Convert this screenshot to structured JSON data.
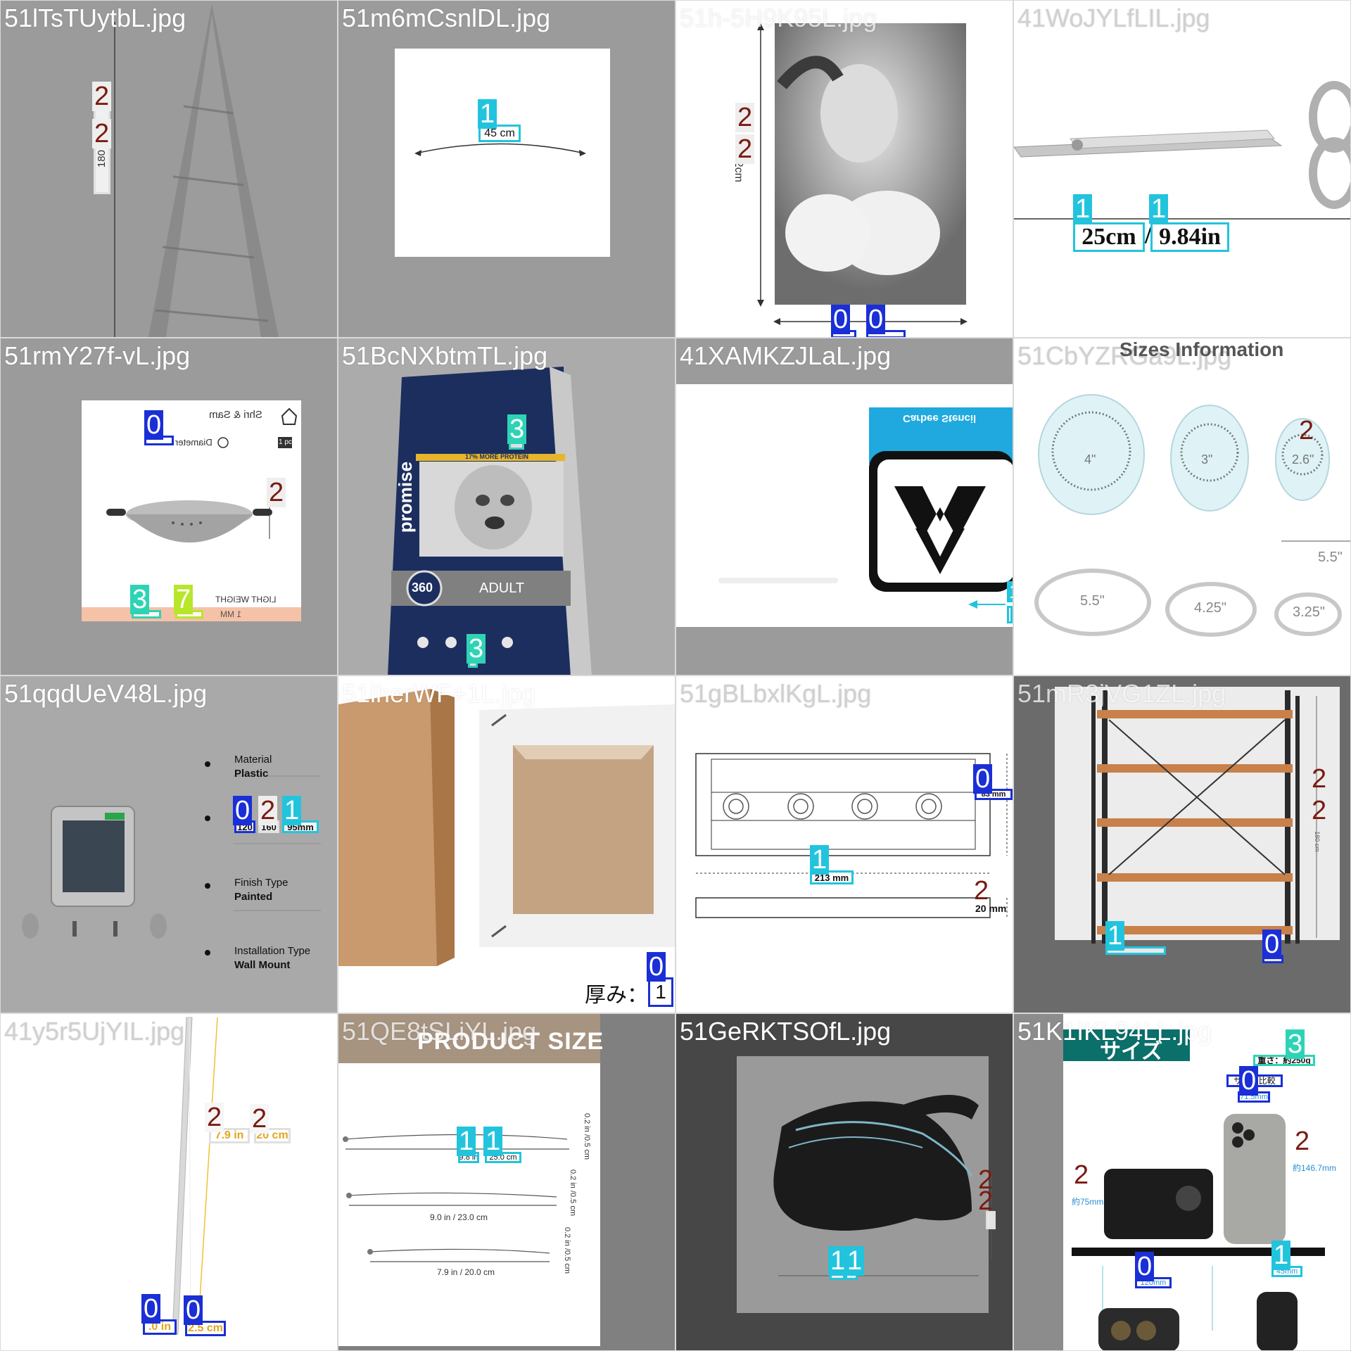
{
  "colors": {
    "class0": "#1a2fd6",
    "class1": "#22c4dd",
    "class2": "#eeeeee",
    "class3": "#2ed3b5",
    "class7": "#b8e62a"
  },
  "tiles": [
    {
      "filename": "51lTsTUytbL.jpg",
      "texts": {
        "height": "180 cm"
      },
      "labels": [
        "2",
        "2"
      ]
    },
    {
      "filename": "51m6mCsnlDL.jpg",
      "texts": {
        "width": "45 cm"
      },
      "labels": [
        "1"
      ]
    },
    {
      "filename": "51h-5H9K95L.jpg",
      "texts": {
        "height": "152cm"
      },
      "labels": [
        "2",
        "2",
        "0",
        "0"
      ]
    },
    {
      "filename": "41WoJYLfLIL.jpg",
      "texts": {
        "cm": "25cm",
        "sep": "/",
        "in": "9.84in"
      },
      "labels": [
        "1",
        "1"
      ]
    },
    {
      "filename": "51rmY27f-vL.jpg",
      "texts": {
        "brand": "Shri & Sam",
        "diameter": "Diameter -",
        "pc": "1 pc",
        "bottom": "LIGHT WEIGHT",
        "thickness": "1 MM"
      },
      "labels": [
        "0",
        "2",
        "3",
        "7"
      ]
    },
    {
      "filename": "51BcNXbtmTL.jpg",
      "texts": {
        "brand": "promise",
        "badge": "360",
        "variant": "ADULT",
        "banner": "17% MORE PROTEIN"
      },
      "labels": [
        "3",
        "3"
      ]
    },
    {
      "filename": "41XAMKZJLaL.jpg",
      "texts": {
        "header": "Carbee Stencil"
      },
      "labels": [
        "1"
      ]
    },
    {
      "filename": "51CbYZRGa9L.jpg",
      "texts": {
        "title": "Sizes Information",
        "s1": "4\"",
        "s2": "3\"",
        "s3": "2.6\"",
        "r1": "5.5\"",
        "r2": "4.25\"",
        "r3": "3.25\"",
        "side": "5.5\""
      },
      "labels": [
        "2"
      ]
    },
    {
      "filename": "51qqdUeV48L.jpg",
      "texts": {
        "f1_label": "Material",
        "f1_value": "Plastic",
        "d1": "120",
        "d2": "160",
        "d3": "95mm",
        "f3_label": "Finish Type",
        "f3_value": "Painted",
        "f4_label": "Installation Type",
        "f4_value": "Wall Mount"
      },
      "labels": [
        "0",
        "2",
        "1"
      ]
    },
    {
      "filename": "51lherWF+1L.jpg",
      "texts": {
        "thickness": "厚み：",
        "value": "1"
      },
      "labels": [
        "0"
      ]
    },
    {
      "filename": "51gBLbxlKgL.jpg",
      "texts": {
        "depth": "83 mm",
        "width": "213 mm",
        "height": "20 mm"
      },
      "labels": [
        "0",
        "1",
        "2"
      ]
    },
    {
      "filename": "51mR3jVG1ZL.jpg",
      "texts": {
        "height": "180 cm"
      },
      "labels": [
        "2",
        "2",
        "1",
        "0"
      ]
    },
    {
      "filename": "41y5r5UjYIL.jpg",
      "texts": {
        "len_in": "7.9 in",
        "sep": "/",
        "len_cm": "20 cm",
        "dia_in": ".0 in",
        "dia_cm": "2.5 cm"
      },
      "labels": [
        "2",
        "2",
        "0",
        "0"
      ]
    },
    {
      "filename": "51QE8tSLiYL.jpg",
      "texts": {
        "title": "PRODUCT SIZE",
        "l1_in": "9.8 in",
        "l1_cm": "25.0 cm",
        "l2": "9.0 in / 23.0 cm",
        "l3": "7.9 in / 20.0 cm",
        "side": "0.2 in /0.5 cm"
      },
      "labels": [
        "1",
        "1"
      ]
    },
    {
      "filename": "51GeRKTSOfL.jpg",
      "texts": {},
      "labels": [
        "2",
        "2",
        "1",
        "1"
      ]
    },
    {
      "filename": "51K1IKL94LL.jpg",
      "texts": {
        "title": "サイズ",
        "weight": "重さ：約250g",
        "compare": "サイズ比較",
        "w_top": "71.5mm",
        "h_right": "約146.7mm",
        "h_left": "約75mm",
        "w_bottom": "120mm",
        "w_right": "45mm"
      },
      "labels": [
        "3",
        "0",
        "2",
        "2",
        "1",
        "0"
      ]
    }
  ]
}
